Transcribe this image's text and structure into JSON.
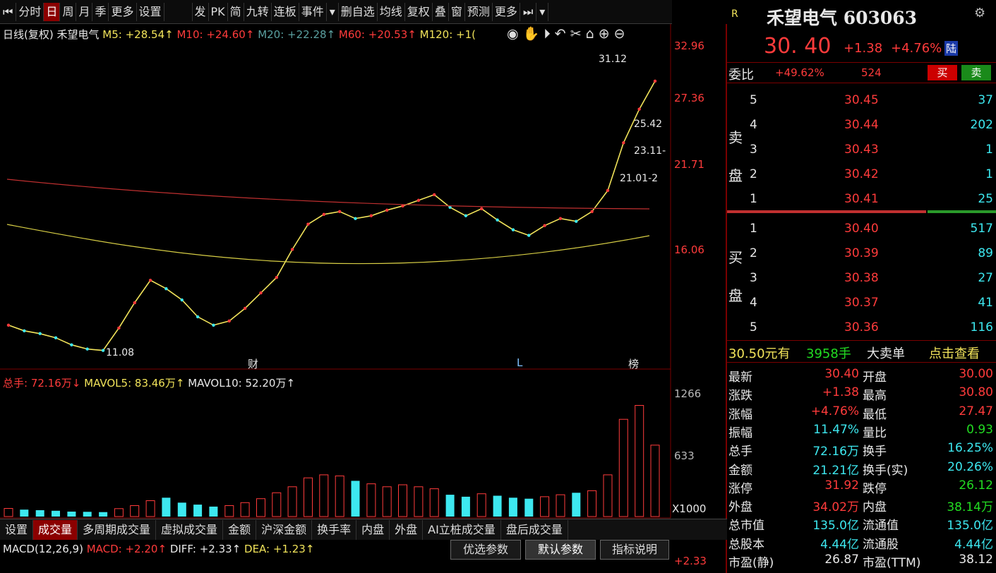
{
  "toolbar": [
    "分时",
    "日",
    "周",
    "月",
    "季",
    "更多",
    "设置",
    "发",
    "PK",
    "简",
    "九转",
    "连板",
    "事件",
    "删自选",
    "均线",
    "复权",
    "叠",
    "窗",
    "预测",
    "更多"
  ],
  "chart_header": {
    "period": "日线(复权)",
    "name": "禾望电气",
    "ma5": "M5: +28.54↑",
    "ma10": "M10: +24.60↑",
    "ma20": "M20: +22.28↑",
    "ma60": "M60: +20.53↑",
    "ma120": "M120: +1("
  },
  "price_axis": [
    "32.96",
    "27.36",
    "21.71",
    "16.06"
  ],
  "annotations": {
    "high": "31.12",
    "low": "11.08",
    "lv1": "25.42",
    "lv2": "23.11-",
    "lv3": "21.01-2",
    "mark_cai": "财",
    "mark_l": "L",
    "mark_bang": "榜"
  },
  "volume": {
    "header_total": "总手: 72.16万↓",
    "header_mavol5": "MAVOL5: 83.46万↑",
    "header_mavol10": "MAVOL10: 52.20万↑",
    "axis": [
      "1266",
      "633",
      "X1000"
    ]
  },
  "tabs": [
    "设置",
    "成交量",
    "多周期成交量",
    "虚拟成交量",
    "金额",
    "沪深金额",
    "换手率",
    "内盘",
    "外盘",
    "AI立桩成交量",
    "盘后成交量"
  ],
  "macd": {
    "header_name": "MACD(12,26,9)",
    "header_macd": "MACD: +2.20↑",
    "header_diff": "DIFF: +2.33↑",
    "header_dea": "DEA: +1.23↑",
    "buttons": [
      "优选参数",
      "默认参数",
      "指标说明"
    ],
    "axis_top": "+2.33"
  },
  "quote": {
    "badge": "R",
    "title": "禾望电气 603063",
    "price": "30. 40",
    "change": "+1.38",
    "pct": "+4.76%",
    "tag": "陆",
    "weibi_label": "委比",
    "weibi_pct": "+49.62%",
    "weibi_vol": "524",
    "buy_btn": "买",
    "sell_btn": "卖",
    "sell_label": "卖盘",
    "buy_label": "买盘",
    "asks": [
      {
        "lvl": "5",
        "price": "30.45",
        "vol": "37"
      },
      {
        "lvl": "4",
        "price": "30.44",
        "vol": "202"
      },
      {
        "lvl": "3",
        "price": "30.43",
        "vol": "1"
      },
      {
        "lvl": "2",
        "price": "30.42",
        "vol": "1"
      },
      {
        "lvl": "1",
        "price": "30.41",
        "vol": "25"
      }
    ],
    "bids": [
      {
        "lvl": "1",
        "price": "30.40",
        "vol": "517"
      },
      {
        "lvl": "2",
        "price": "30.39",
        "vol": "89"
      },
      {
        "lvl": "3",
        "price": "30.38",
        "vol": "27"
      },
      {
        "lvl": "4",
        "price": "30.37",
        "vol": "41"
      },
      {
        "lvl": "5",
        "price": "30.36",
        "vol": "116"
      }
    ],
    "bigorder": {
      "price": "30.50元有",
      "qty": "3958手",
      "label": "大卖单",
      "link": "点击查看"
    },
    "stats": [
      {
        "k1": "最新",
        "v1": "30.40",
        "k2": "开盘",
        "v2": "30.00"
      },
      {
        "k1": "涨跌",
        "v1": "+1.38",
        "k2": "最高",
        "v2": "30.80"
      },
      {
        "k1": "涨幅",
        "v1": "+4.76%",
        "k2": "最低",
        "v2": "27.47"
      },
      {
        "k1": "振幅",
        "v1": "11.47%",
        "k2": "量比",
        "v2": "0.93"
      },
      {
        "k1": "总手",
        "v1": "72.16万",
        "k2": "换手",
        "v2": "16.25%"
      },
      {
        "k1": "金额",
        "v1": "21.21亿",
        "k2": "换手(实)",
        "v2": "20.26%"
      },
      {
        "k1": "涨停",
        "v1": "31.92",
        "k2": "跌停",
        "v2": "26.12"
      },
      {
        "k1": "外盘",
        "v1": "34.02万",
        "k2": "内盘",
        "v2": "38.14万"
      },
      {
        "k1": "总市值",
        "v1": "135.0亿",
        "k2": "流通值",
        "v2": "135.0亿"
      },
      {
        "k1": "总股本",
        "v1": "4.44亿",
        "k2": "流通股",
        "v2": "4.44亿"
      },
      {
        "k1": "市盈(静)",
        "v1": "26.87",
        "k2": "市盈(TTM)",
        "v2": "38.12"
      }
    ]
  },
  "chart_data": {
    "type": "line",
    "title": "",
    "ylim": [
      11.08,
      32.96
    ],
    "series": [
      {
        "values": [
          13.0,
          12.6,
          12.4,
          12.1,
          11.6,
          11.3,
          11.2,
          12.8,
          14.6,
          16.2,
          15.6,
          14.8,
          13.6,
          13.0,
          13.3,
          14.2,
          15.3,
          16.4,
          18.4,
          20.2,
          20.9,
          21.1,
          20.6,
          20.8,
          21.2,
          21.5,
          21.9,
          22.3,
          21.4,
          20.8,
          21.3,
          20.5,
          19.8,
          19.4,
          20.1,
          20.6,
          20.4,
          21.1,
          22.6,
          26.0,
          28.4,
          30.4
        ]
      }
    ],
    "volume_values": [
      82,
      70,
      64,
      58,
      50,
      48,
      45,
      80,
      110,
      160,
      190,
      140,
      120,
      100,
      110,
      140,
      180,
      240,
      300,
      390,
      420,
      410,
      360,
      330,
      300,
      320,
      300,
      280,
      220,
      200,
      230,
      210,
      190,
      180,
      200,
      220,
      240,
      260,
      420,
      980,
      1120,
      720
    ]
  }
}
